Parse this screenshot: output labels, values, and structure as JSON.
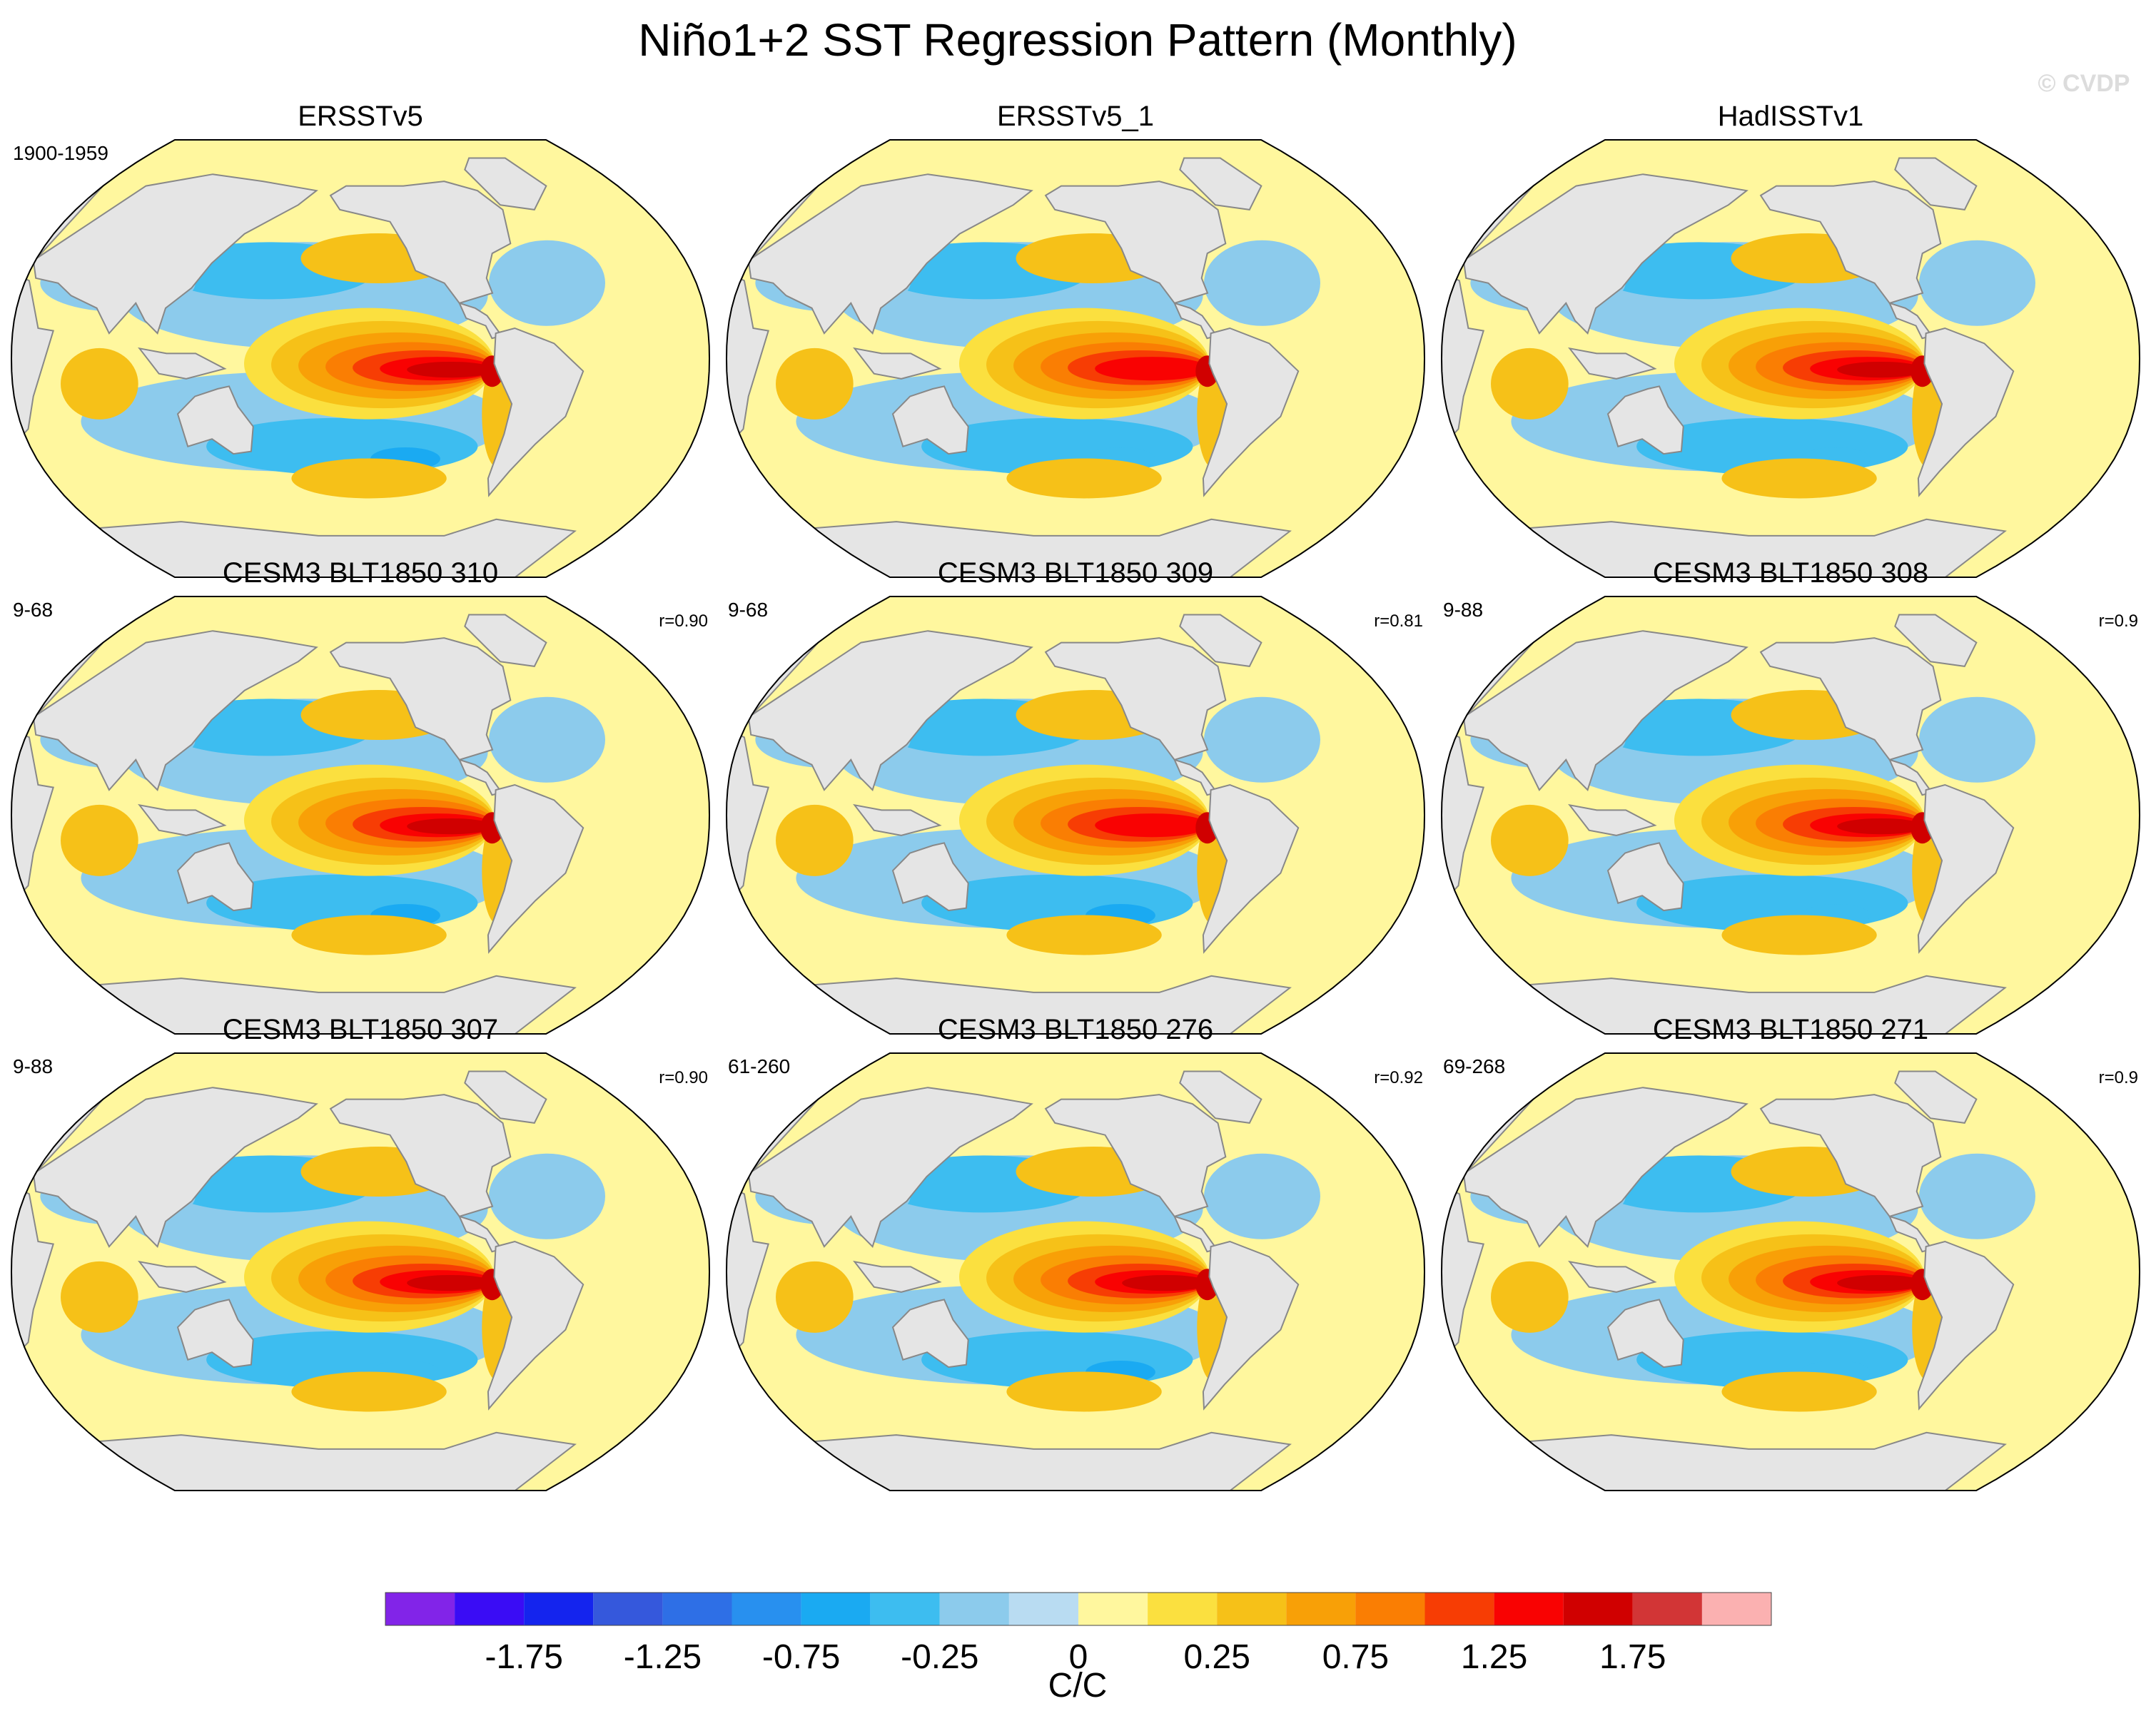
{
  "chart_data": {
    "type": "heatmap",
    "title": "Niño1+2 SST Regression Pattern (Monthly)",
    "watermark": "© CVDP",
    "projection": "Robinson",
    "units": "C/C",
    "colorbar": {
      "levels": [
        -2.0,
        -1.75,
        -1.5,
        -1.25,
        -1.0,
        -0.75,
        -0.5,
        -0.25,
        -0.1,
        0,
        0.1,
        0.25,
        0.5,
        0.75,
        1.0,
        1.25,
        1.5,
        1.75,
        2.0
      ],
      "colors": [
        "#8224e8",
        "#3a0cf5",
        "#1424ee",
        "#3558dc",
        "#2e6fe6",
        "#2890ef",
        "#1aaaf2",
        "#3dbdf0",
        "#8ccbec",
        "#b9dcf2",
        "#fff79e",
        "#fbe03f",
        "#f6c118",
        "#f8a007",
        "#fa7e03",
        "#f73d04",
        "#f90202",
        "#d00000",
        "#d23536",
        "#fbb1b1"
      ],
      "tick_labels": [
        "-1.75",
        "-1.25",
        "-0.75",
        "-0.25",
        "0",
        "0.25",
        "0.75",
        "1.25",
        "1.75"
      ],
      "tick_values": [
        -1.75,
        -1.25,
        -0.75,
        -0.25,
        0,
        0.25,
        0.75,
        1.25,
        1.75
      ]
    },
    "panels": [
      {
        "title": "ERSSTv5",
        "period": "1900-1959",
        "corr": "",
        "peak": 1.55,
        "pacific_south": -0.35,
        "cold_spot": -0.6
      },
      {
        "title": "ERSSTv5_1",
        "period": "",
        "corr": "",
        "peak": 1.5,
        "pacific_south": -0.3,
        "cold_spot": -0.3
      },
      {
        "title": "HadISSTv1",
        "period": "",
        "corr": "",
        "peak": 1.65,
        "pacific_south": -0.3,
        "cold_spot": -0.3
      },
      {
        "title": "CESM3 BLT1850 310",
        "period": "9-68",
        "corr": "r=0.90",
        "peak": 1.6,
        "pacific_south": -0.3,
        "cold_spot": -0.6
      },
      {
        "title": "CESM3 BLT1850 309",
        "period": "9-68",
        "corr": "r=0.81",
        "peak": 1.5,
        "pacific_south": -0.3,
        "cold_spot": -0.75
      },
      {
        "title": "CESM3 BLT1850 308",
        "period": "9-88",
        "corr": "r=0.9",
        "peak": 1.6,
        "pacific_south": -0.3,
        "cold_spot": -0.3
      },
      {
        "title": "CESM3 BLT1850 307",
        "period": "9-88",
        "corr": "r=0.90",
        "peak": 1.7,
        "pacific_south": -0.3,
        "cold_spot": -0.3
      },
      {
        "title": "CESM3 BLT1850 276",
        "period": "61-260",
        "corr": "r=0.92",
        "peak": 1.6,
        "pacific_south": -0.35,
        "cold_spot": -0.6
      },
      {
        "title": "CESM3 BLT1850 271",
        "period": "69-268",
        "corr": "r=0.9",
        "peak": 1.6,
        "pacific_south": -0.3,
        "cold_spot": -0.3
      }
    ]
  }
}
